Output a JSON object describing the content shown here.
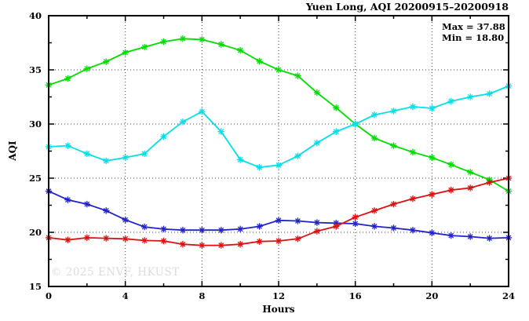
{
  "title": "Yuen Long, AQI 20200915–20200918",
  "watermark": "© 2025 ENVF, HKUST",
  "annotation": {
    "max_label": "Max = 37.88",
    "min_label": "Min = 18.80"
  },
  "chart_data": {
    "type": "line",
    "title": "Yuen Long, AQI 20200915–20200918",
    "xlabel": "Hours",
    "ylabel": "AQI",
    "xlim": [
      0,
      24
    ],
    "ylim": [
      15,
      40
    ],
    "x_major_ticks": [
      0,
      4,
      8,
      12,
      16,
      20,
      24
    ],
    "x_minor_ticks": [
      2,
      6,
      10,
      14,
      18,
      22
    ],
    "y_major_ticks": [
      15,
      20,
      25,
      30,
      35,
      40
    ],
    "y_minor_ticks": [
      17.5,
      22.5,
      27.5,
      32.5,
      37.5
    ],
    "x_gridlines": [
      4,
      8,
      12,
      16,
      20
    ],
    "y_gridlines": [
      20,
      25,
      30,
      35
    ],
    "grid": "dotted",
    "legend_position": "none",
    "stats": {
      "max": 37.88,
      "min": 18.8
    },
    "x": [
      0,
      1,
      2,
      3,
      4,
      5,
      6,
      7,
      8,
      9,
      10,
      11,
      12,
      13,
      14,
      15,
      16,
      17,
      18,
      19,
      20,
      21,
      22,
      23,
      24
    ],
    "series": [
      {
        "name": "green",
        "color": "#00dd00",
        "marker": "asterisk",
        "values": [
          33.6,
          34.2,
          35.1,
          35.75,
          36.6,
          37.1,
          37.6,
          37.88,
          37.8,
          37.35,
          36.8,
          35.8,
          35.0,
          34.45,
          32.9,
          31.5,
          30.0,
          28.7,
          28.0,
          27.4,
          26.9,
          26.25,
          25.55,
          24.85,
          23.8
        ]
      },
      {
        "name": "cyan",
        "color": "#00e0e8",
        "marker": "asterisk",
        "values": [
          27.9,
          28.0,
          27.25,
          26.6,
          26.9,
          27.25,
          28.85,
          30.2,
          31.15,
          29.3,
          26.7,
          26.0,
          26.2,
          27.05,
          28.25,
          29.3,
          30.0,
          30.85,
          31.2,
          31.6,
          31.45,
          32.1,
          32.5,
          32.8,
          33.5
        ]
      },
      {
        "name": "blue",
        "color": "#2222cc",
        "marker": "asterisk",
        "values": [
          23.8,
          23.0,
          22.6,
          22.0,
          21.15,
          20.5,
          20.3,
          20.2,
          20.2,
          20.2,
          20.3,
          20.55,
          21.1,
          21.05,
          20.9,
          20.85,
          20.8,
          20.55,
          20.4,
          20.2,
          19.95,
          19.7,
          19.6,
          19.45,
          19.5
        ]
      },
      {
        "name": "red",
        "color": "#dd1111",
        "marker": "asterisk",
        "values": [
          19.5,
          19.3,
          19.5,
          19.45,
          19.4,
          19.25,
          19.2,
          18.9,
          18.8,
          18.8,
          18.9,
          19.15,
          19.2,
          19.4,
          20.1,
          20.55,
          21.4,
          22.0,
          22.6,
          23.1,
          23.5,
          23.9,
          24.1,
          24.6,
          25.0
        ]
      }
    ]
  }
}
